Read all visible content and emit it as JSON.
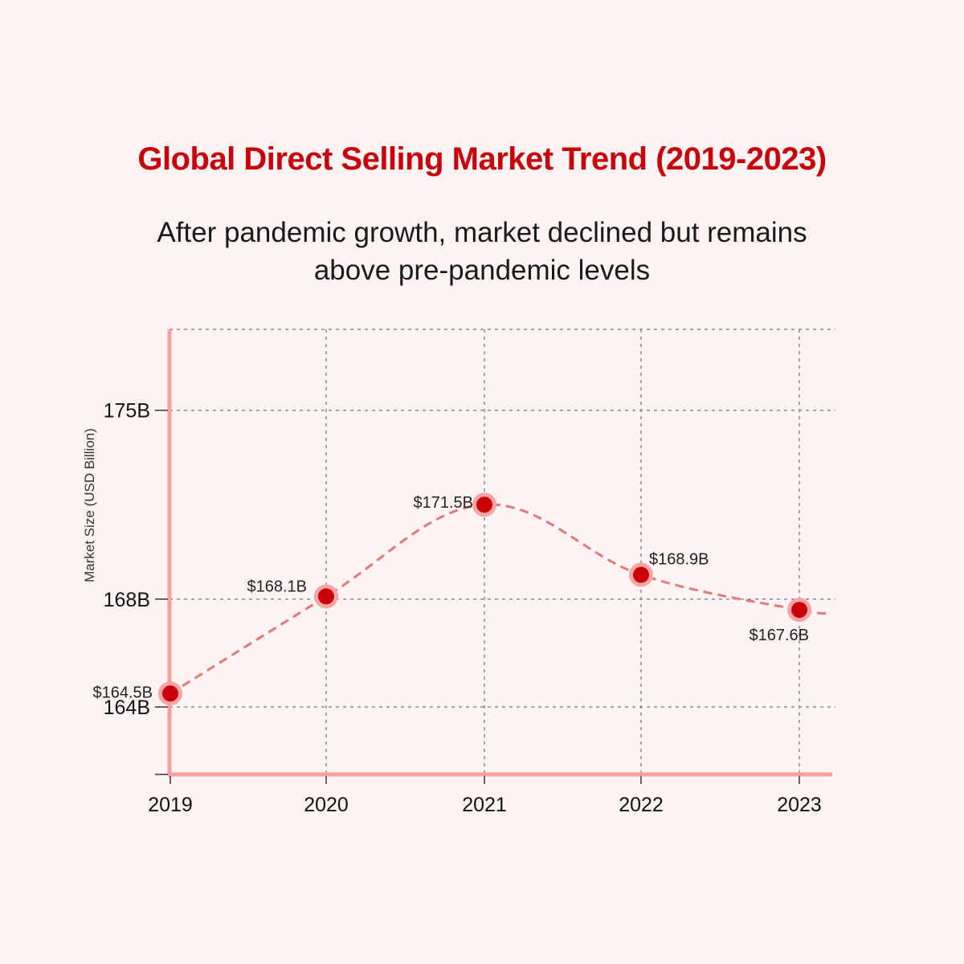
{
  "chart_data": {
    "type": "line",
    "title": "Global Direct Selling Market Trend (2019-2023)",
    "subtitle_lines": [
      "After pandemic growth, market declined but remains",
      "above pre-pandemic levels"
    ],
    "xlabel": "",
    "ylabel": "Market Size (USD Billion)",
    "categories": [
      "2019",
      "2020",
      "2021",
      "2022",
      "2023"
    ],
    "series": [
      {
        "values": [
          164.5,
          168.1,
          171.5,
          168.9,
          167.6
        ],
        "data_labels": [
          "$164.5B",
          "$168.1B",
          "$171.5B",
          "$168.9B",
          "$167.6B"
        ]
      }
    ],
    "yticks": [
      {
        "value": 164,
        "label": "164B"
      },
      {
        "value": 168,
        "label": "168B"
      },
      {
        "value": 175,
        "label": "175B"
      }
    ],
    "ylim": [
      161.5,
      178
    ],
    "grid": true,
    "colors": {
      "title": "#c8000a",
      "line": "#e07a7a",
      "marker": "#c8000a",
      "marker_ring": "#f4a6a6",
      "axis": "#f6a0a0",
      "grid": "#8a8a8a",
      "background": "#fff4f3"
    }
  }
}
